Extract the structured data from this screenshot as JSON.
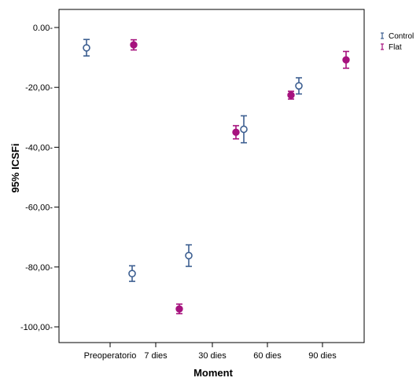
{
  "chart_data": {
    "type": "scatter",
    "subtype": "error-bar",
    "title": "",
    "xlabel": "Moment",
    "ylabel": "95% ICSFi",
    "categories": [
      "Preoperatorio",
      "7 dies",
      "30 dies",
      "60 dies",
      "90 dies"
    ],
    "ylim": [
      -105,
      6
    ],
    "yticks": [
      0,
      -20,
      -40,
      -60,
      -80,
      -100
    ],
    "ytick_labels": [
      "0.00-",
      "-20,00-",
      "-40,00-",
      "-60,00-",
      "-80,00-",
      "-100,00-"
    ],
    "grid": false,
    "legend": "top-right",
    "series": [
      {
        "name": "Control",
        "color": "#3d5f91",
        "marker": "open-circle",
        "mean": [
          -6.8,
          -82.2,
          -76.2,
          -34.0,
          -19.5
        ],
        "lower": [
          -9.5,
          -84.8,
          -79.8,
          -38.5,
          -22.2
        ],
        "upper": [
          -4.0,
          -79.6,
          -72.6,
          -29.5,
          -16.8
        ]
      },
      {
        "name": "Flat",
        "color": "#a6127e",
        "marker": "filled-circle",
        "mean": [
          -5.8,
          -94.0,
          -35.0,
          -22.6,
          -10.8
        ],
        "lower": [
          -7.5,
          -95.6,
          -37.2,
          -23.9,
          -13.6
        ],
        "upper": [
          -4.1,
          -92.4,
          -32.8,
          -21.3,
          -8.0
        ]
      }
    ]
  }
}
